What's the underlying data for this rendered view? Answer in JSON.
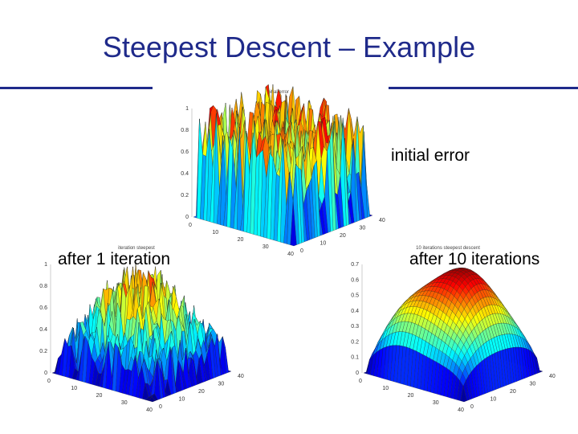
{
  "slide": {
    "title": "Steepest Descent – Example",
    "captions": {
      "initial": "initial error",
      "after1": "after 1 iteration",
      "after10": "after 10 iterations"
    }
  },
  "chart_data": [
    {
      "type": "surface",
      "title": "initial error",
      "z_ticks": [
        "0",
        "0.2",
        "0.4",
        "0.6",
        "0.8",
        "1"
      ],
      "x_ticks": [
        "0",
        "10",
        "20",
        "30",
        "40"
      ],
      "y_ticks": [
        "0",
        "10",
        "20",
        "30",
        "40"
      ],
      "shape": "random",
      "zlim": [
        0,
        1
      ]
    },
    {
      "type": "surface",
      "title": "iteration steepest",
      "z_ticks": [
        "0",
        "0.2",
        "0.4",
        "0.6",
        "0.8",
        "1"
      ],
      "x_ticks": [
        "0",
        "10",
        "20",
        "30",
        "40"
      ],
      "y_ticks": [
        "0",
        "10",
        "20",
        "30",
        "40"
      ],
      "shape": "noisy",
      "zlim": [
        0,
        1
      ]
    },
    {
      "type": "surface",
      "title": "10 iterations steepest descent",
      "z_ticks": [
        "0",
        "0.1",
        "0.2",
        "0.3",
        "0.4",
        "0.5",
        "0.6",
        "0.7"
      ],
      "x_ticks": [
        "0",
        "10",
        "20",
        "30",
        "40"
      ],
      "y_ticks": [
        "0",
        "10",
        "20",
        "30",
        "40"
      ],
      "shape": "smooth",
      "zlim": [
        0,
        0.7
      ]
    }
  ]
}
